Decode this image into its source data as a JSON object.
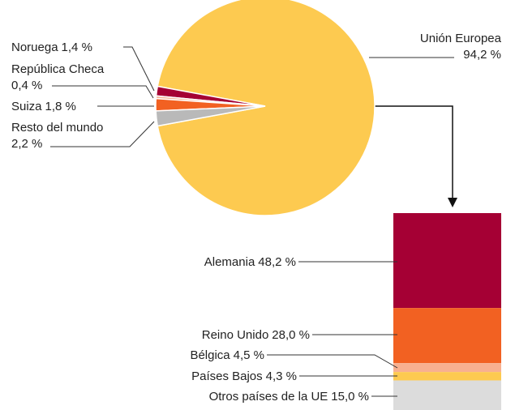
{
  "chart_data": [
    {
      "type": "pie",
      "categories": [
        "Unión Europea",
        "Noruega",
        "República Checa",
        "Suiza",
        "Resto del mundo"
      ],
      "values": [
        94.2,
        1.4,
        0.4,
        1.8,
        2.2
      ],
      "value_labels": [
        "94,2 %",
        "1,4 %",
        "0,4 %",
        "1,8 %",
        "2,2 %"
      ],
      "colors": [
        "#fdca50",
        "#a50034",
        "#f7b59a",
        "#f26122",
        "#b9b9b9"
      ]
    },
    {
      "type": "stacked_bar",
      "categories": [
        "Alemania",
        "Reino Unido",
        "Bélgica",
        "Países Bajos",
        "Otros países de la UE"
      ],
      "values": [
        48.2,
        28.0,
        4.5,
        4.3,
        15.0
      ],
      "value_labels": [
        "48,2 %",
        "28,0 %",
        "4,5 %",
        "4,3 %",
        "15,0 %"
      ],
      "colors": [
        "#a50034",
        "#f26122",
        "#f8b090",
        "#fdca50",
        "#dcdcdc"
      ]
    }
  ]
}
